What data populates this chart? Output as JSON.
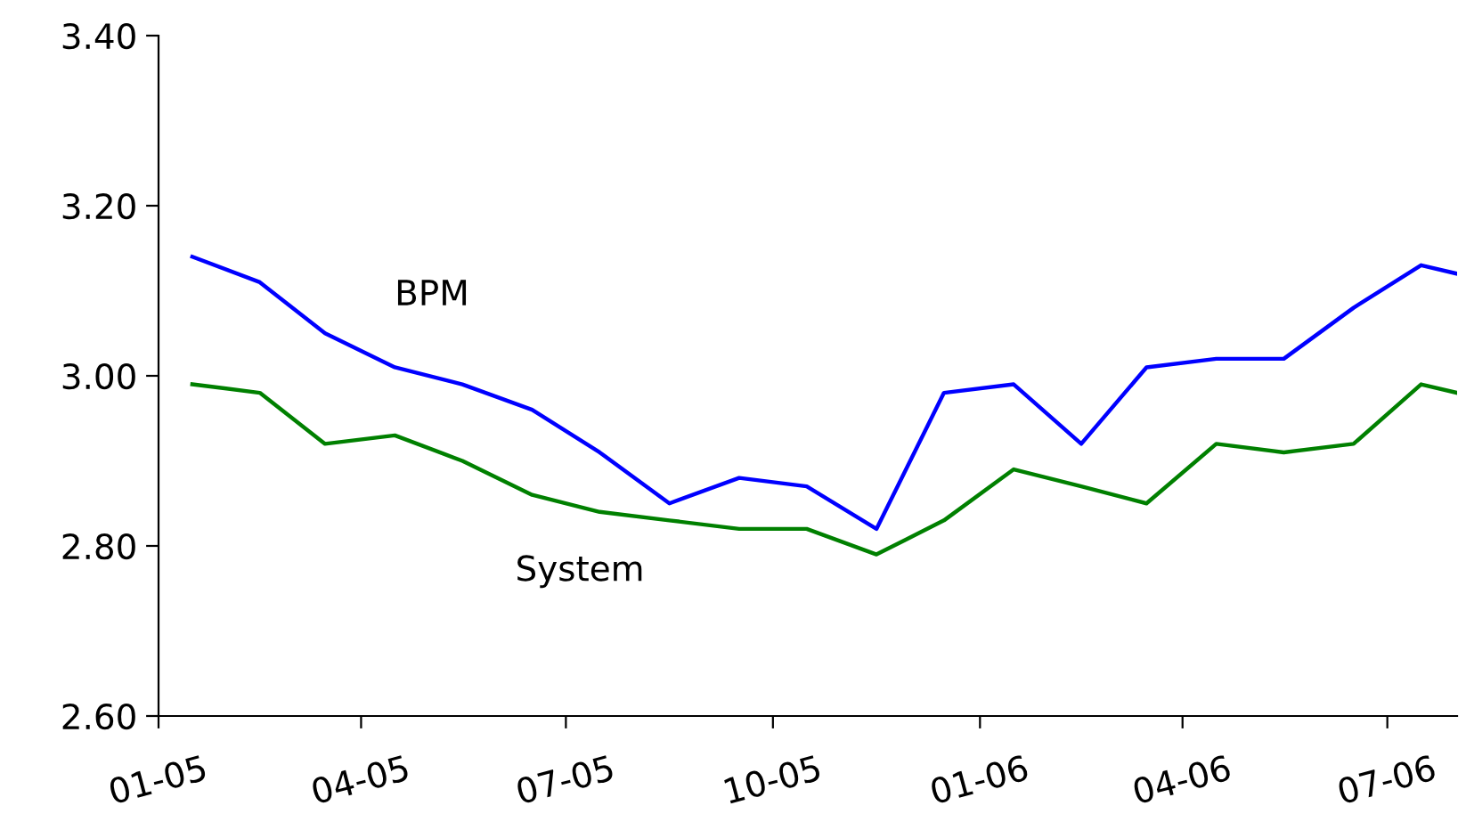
{
  "chart_data": {
    "type": "line",
    "x": [
      "2005-01-16",
      "2005-02-15",
      "2005-03-16",
      "2005-04-16",
      "2005-05-16",
      "2005-06-16",
      "2005-07-16",
      "2005-08-16",
      "2005-09-16",
      "2005-10-16",
      "2005-11-16",
      "2005-12-16",
      "2006-01-16",
      "2006-02-15",
      "2006-03-16",
      "2006-04-16",
      "2006-05-16",
      "2006-06-16",
      "2006-07-16",
      "2006-08-01"
    ],
    "series": [
      {
        "name": "BPM",
        "color": "#0000ff",
        "values": [
          3.14,
          3.11,
          3.05,
          3.01,
          2.99,
          2.96,
          2.91,
          2.85,
          2.88,
          2.87,
          2.82,
          2.98,
          2.99,
          2.92,
          3.01,
          3.02,
          3.02,
          3.08,
          3.13,
          3.12
        ]
      },
      {
        "name": "System",
        "color": "#008000",
        "values": [
          2.99,
          2.98,
          2.92,
          2.93,
          2.9,
          2.86,
          2.84,
          2.83,
          2.82,
          2.82,
          2.79,
          2.83,
          2.89,
          2.87,
          2.85,
          2.92,
          2.91,
          2.92,
          2.99,
          2.98
        ]
      }
    ],
    "xlim": [
      "2005-01",
      "2006-08"
    ],
    "xticks": [
      {
        "value": "2005-01",
        "label": "01-05"
      },
      {
        "value": "2005-04",
        "label": "04-05"
      },
      {
        "value": "2005-07",
        "label": "07-05"
      },
      {
        "value": "2005-10",
        "label": "10-05"
      },
      {
        "value": "2006-01",
        "label": "01-06"
      },
      {
        "value": "2006-04",
        "label": "04-06"
      },
      {
        "value": "2006-07",
        "label": "07-06"
      }
    ],
    "ylim": [
      2.6,
      3.4
    ],
    "yticks": [
      {
        "value": 2.6,
        "label": "2.60"
      },
      {
        "value": 2.8,
        "label": "2.80"
      },
      {
        "value": 3.0,
        "label": "3.00"
      },
      {
        "value": 3.2,
        "label": "3.20"
      },
      {
        "value": 3.4,
        "label": "3.40"
      }
    ],
    "grid": false,
    "legend": false,
    "marker": "none",
    "line_style": "solid"
  }
}
